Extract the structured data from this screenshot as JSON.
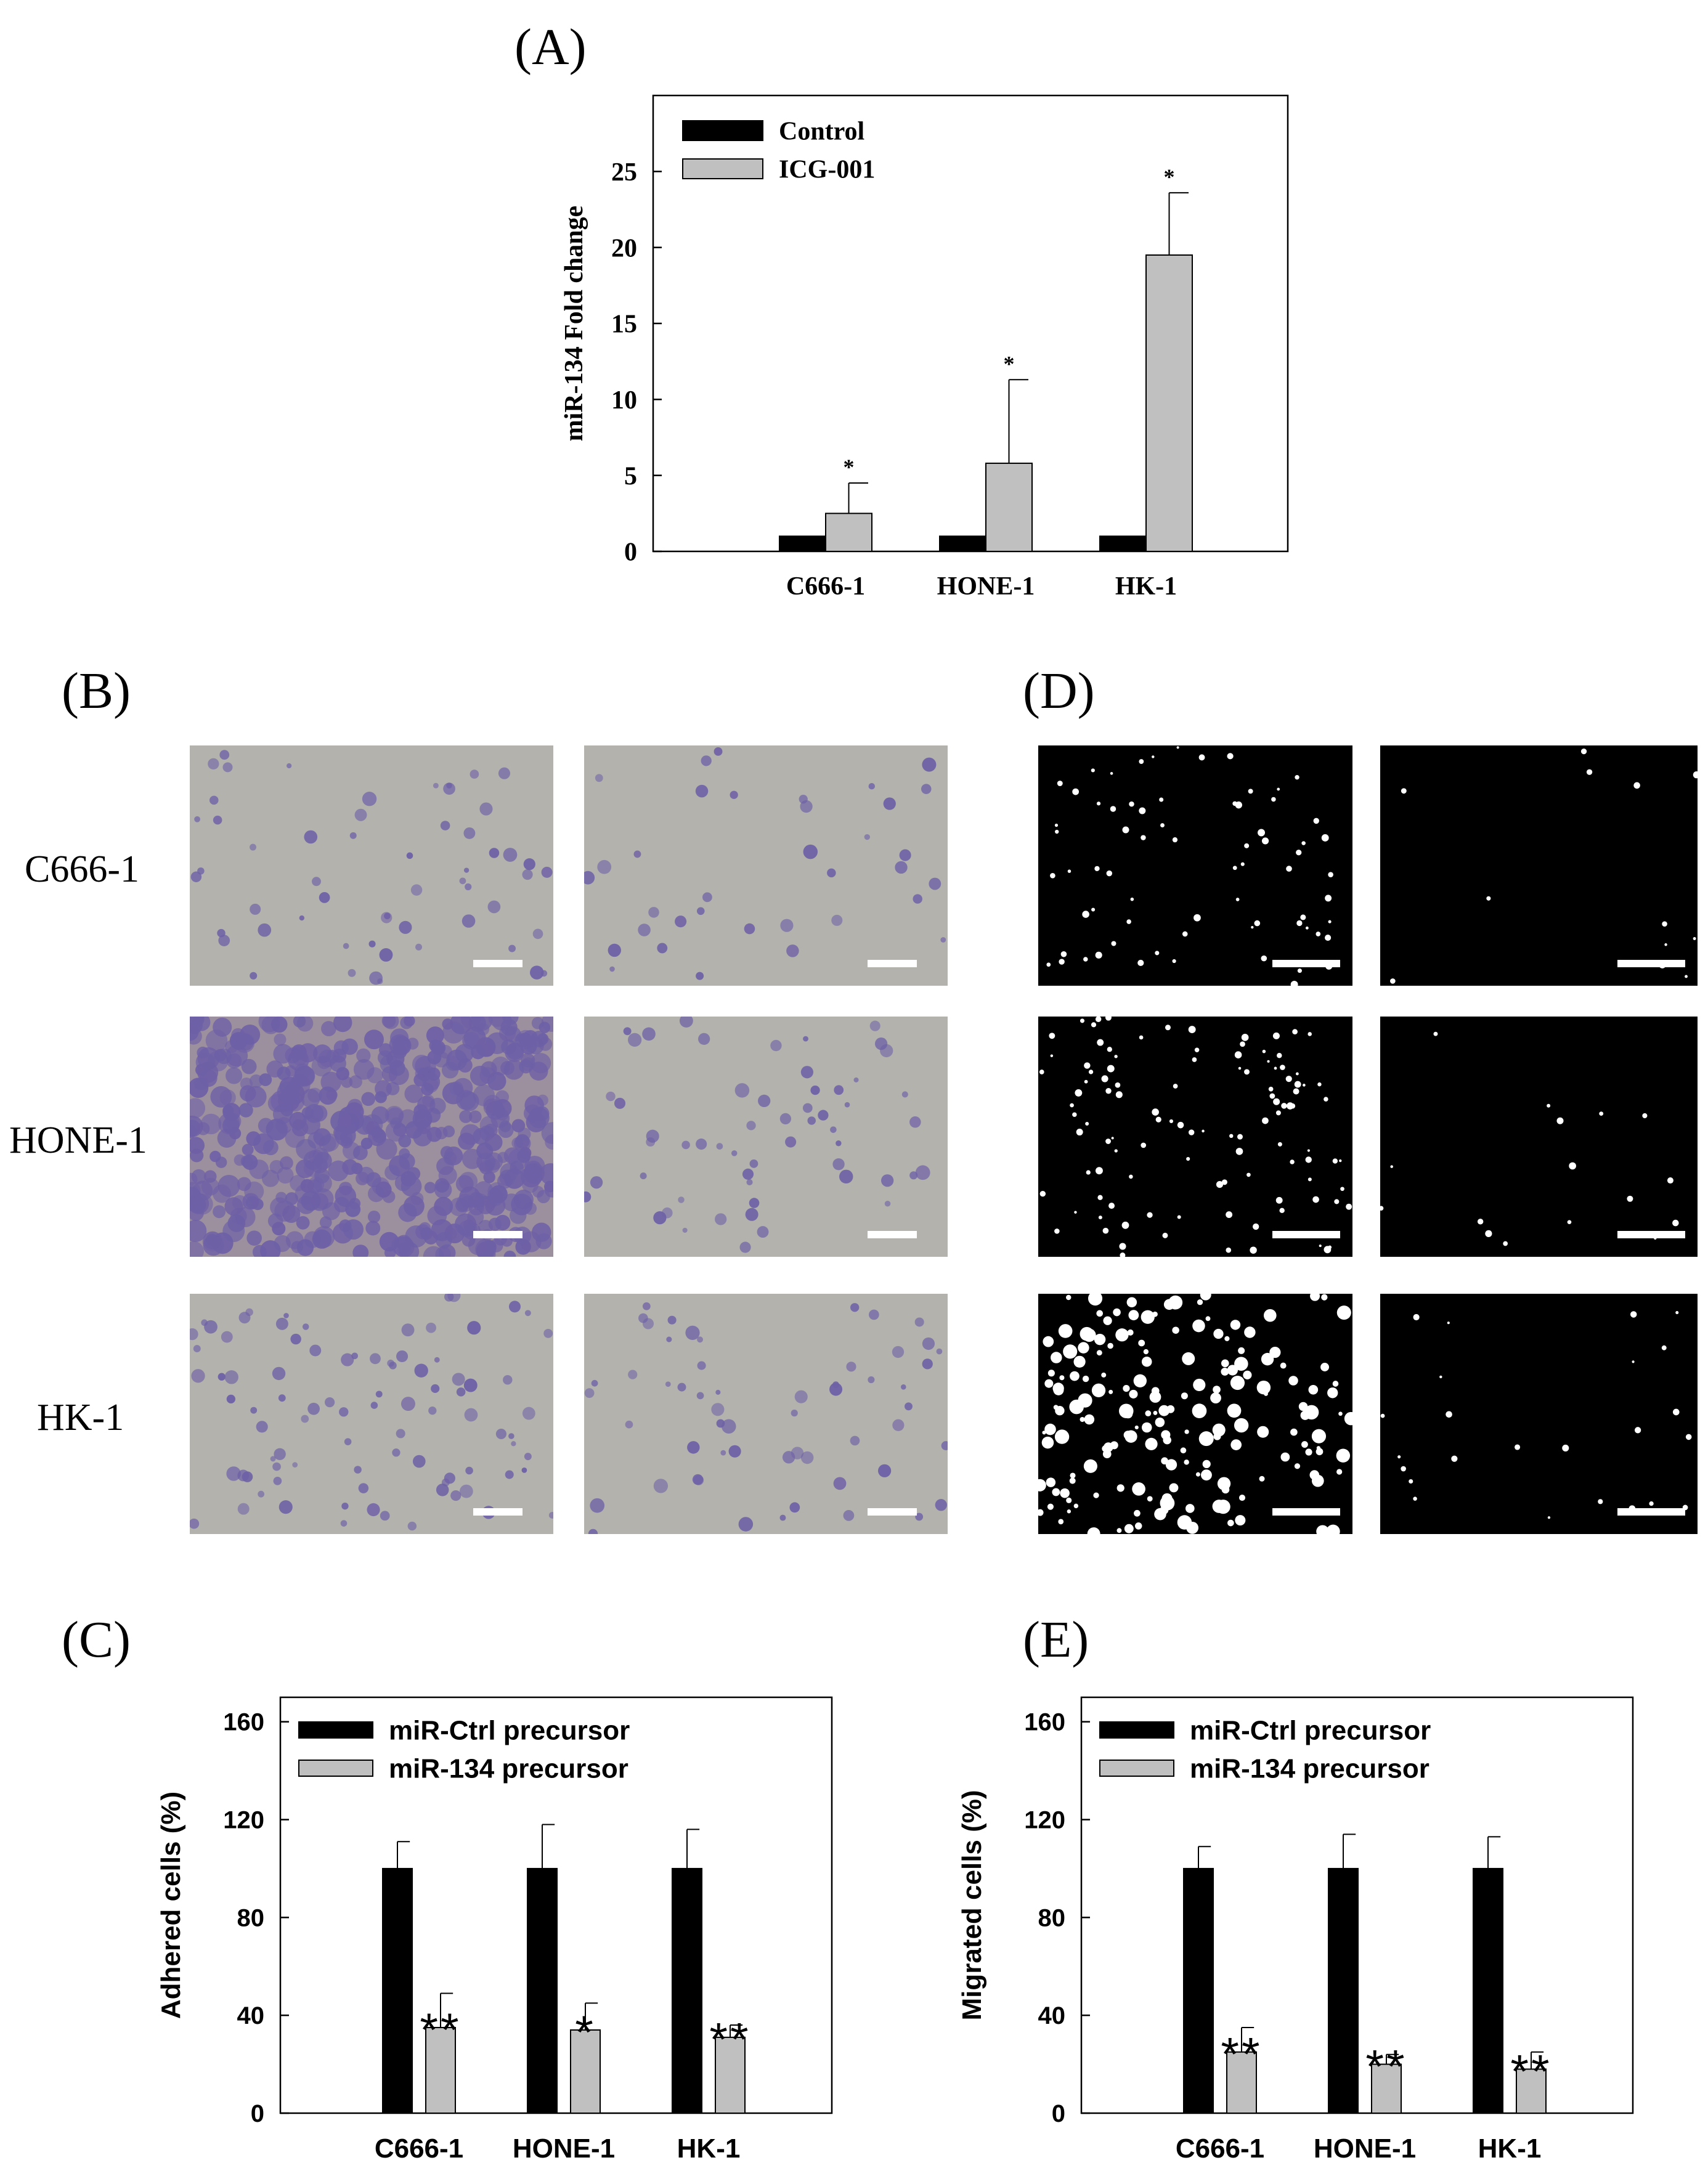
{
  "panels": {
    "a": "(A)",
    "b": "(B)",
    "c": "(C)",
    "d": "(D)",
    "e": "(E)"
  },
  "micrographs": {
    "rows": [
      "C666-1",
      "HONE-1",
      "HK-1"
    ],
    "b_colors": {
      "background": "#b3b2ad",
      "dense_background": "#9c8f9e",
      "cell": "#6e60a6"
    },
    "d_colors": {
      "background": "#000000",
      "cell": "#ffffff"
    },
    "b_density": [
      [
        0.35,
        0.22
      ],
      [
        1.0,
        0.35
      ],
      [
        0.55,
        0.35
      ]
    ],
    "d_density": [
      [
        0.35,
        0.06
      ],
      [
        0.55,
        0.08
      ],
      [
        0.9,
        0.12
      ]
    ]
  },
  "chart_data": [
    {
      "id": "A",
      "type": "bar",
      "title": "",
      "xlabel": "",
      "ylabel": "miR-134 Fold change",
      "ylim": [
        0,
        30
      ],
      "yticks": [
        0,
        5,
        10,
        15,
        20,
        25
      ],
      "categories": [
        "C666-1",
        "HONE-1",
        "HK-1"
      ],
      "legend_position": "top-left",
      "grid": false,
      "series": [
        {
          "name": "Control",
          "color": "#000000",
          "values": [
            1,
            1,
            1
          ],
          "errors": [
            0,
            0,
            0
          ],
          "significance": [
            "",
            "",
            ""
          ]
        },
        {
          "name": "ICG-001",
          "color": "#c0c0c0",
          "values": [
            2.5,
            5.8,
            19.5
          ],
          "errors": [
            2.0,
            5.5,
            4.1
          ],
          "significance": [
            "*",
            "*",
            "*"
          ]
        }
      ]
    },
    {
      "id": "C",
      "type": "bar",
      "title": "",
      "xlabel": "",
      "ylabel": "Adhered cells (%)",
      "ylim": [
        0,
        170
      ],
      "yticks": [
        0,
        40,
        80,
        120,
        160
      ],
      "categories": [
        "C666-1",
        "HONE-1",
        "HK-1"
      ],
      "legend_position": "top-left",
      "grid": false,
      "series": [
        {
          "name": "miR-Ctrl precursor",
          "color": "#000000",
          "values": [
            100,
            100,
            100
          ],
          "errors": [
            11,
            18,
            16
          ],
          "significance": [
            "",
            "",
            ""
          ]
        },
        {
          "name": "miR-134 precursor",
          "color": "#c0c0c0",
          "values": [
            35,
            34,
            31
          ],
          "errors": [
            14,
            11,
            5
          ],
          "significance": [
            "**",
            "*",
            "**"
          ]
        }
      ]
    },
    {
      "id": "E",
      "type": "bar",
      "title": "",
      "xlabel": "",
      "ylabel": "Migrated cells (%)",
      "ylim": [
        0,
        170
      ],
      "yticks": [
        0,
        40,
        80,
        120,
        160
      ],
      "categories": [
        "C666-1",
        "HONE-1",
        "HK-1"
      ],
      "legend_position": "top-left",
      "grid": false,
      "series": [
        {
          "name": "miR-Ctrl precursor",
          "color": "#000000",
          "values": [
            100,
            100,
            100
          ],
          "errors": [
            9,
            14,
            13
          ],
          "significance": [
            "",
            "",
            ""
          ]
        },
        {
          "name": "miR-134 precursor",
          "color": "#c0c0c0",
          "values": [
            25,
            20,
            18
          ],
          "errors": [
            10,
            4,
            7
          ],
          "significance": [
            "**",
            "**",
            "**"
          ]
        }
      ]
    }
  ]
}
